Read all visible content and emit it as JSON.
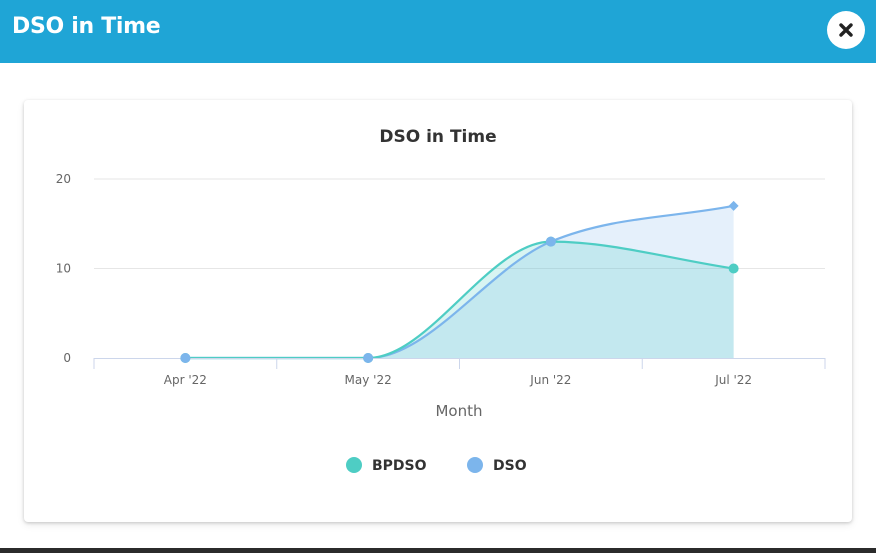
{
  "modal": {
    "title": "DSO in Time",
    "close_icon": "close-icon"
  },
  "colors": {
    "header": "#1fa5d6",
    "bpdso": "#4ecdc4",
    "dso": "#7cb5ec"
  },
  "chart_data": {
    "type": "area",
    "title": "DSO in Time",
    "xlabel": "Month",
    "ylabel": "",
    "categories": [
      "Apr '22",
      "May '22",
      "Jun '22",
      "Jul '22"
    ],
    "ylim": [
      0,
      20
    ],
    "yticks": [
      0,
      10,
      20
    ],
    "grid": true,
    "legend": "bottom-center",
    "series": [
      {
        "name": "BPDSO",
        "values": [
          0,
          0,
          13,
          10
        ],
        "color": "#4ecdc4"
      },
      {
        "name": "DSO",
        "values": [
          0,
          0,
          13,
          17
        ],
        "color": "#7cb5ec"
      }
    ]
  }
}
